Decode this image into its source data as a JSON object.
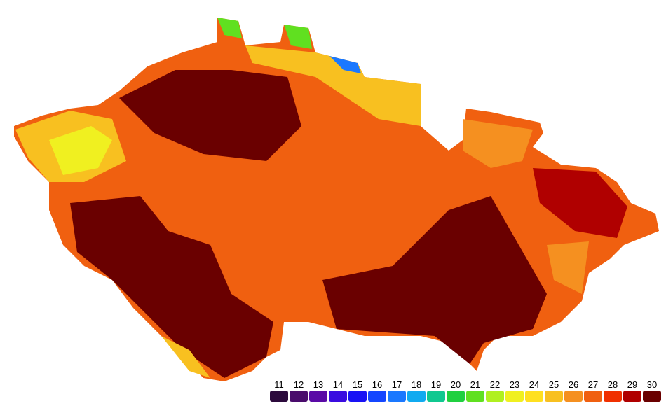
{
  "legend": [
    {
      "value": 11,
      "color": "#2c0a3c"
    },
    {
      "value": 12,
      "color": "#4a0c6c"
    },
    {
      "value": 13,
      "color": "#5a0aa6"
    },
    {
      "value": 14,
      "color": "#3a0ce0"
    },
    {
      "value": 15,
      "color": "#1812f5"
    },
    {
      "value": 16,
      "color": "#1446ff"
    },
    {
      "value": 17,
      "color": "#1a78ff"
    },
    {
      "value": 18,
      "color": "#10aaf0"
    },
    {
      "value": 19,
      "color": "#10c890"
    },
    {
      "value": 20,
      "color": "#20d040"
    },
    {
      "value": 21,
      "color": "#60e020"
    },
    {
      "value": 22,
      "color": "#b0f020"
    },
    {
      "value": 23,
      "color": "#f0f020"
    },
    {
      "value": 24,
      "color": "#ffe020"
    },
    {
      "value": 25,
      "color": "#f8c020"
    },
    {
      "value": 26,
      "color": "#f59020"
    },
    {
      "value": 27,
      "color": "#f06010"
    },
    {
      "value": 28,
      "color": "#f03000"
    },
    {
      "value": 29,
      "color": "#b00000"
    },
    {
      "value": 30,
      "color": "#6a0000"
    }
  ]
}
